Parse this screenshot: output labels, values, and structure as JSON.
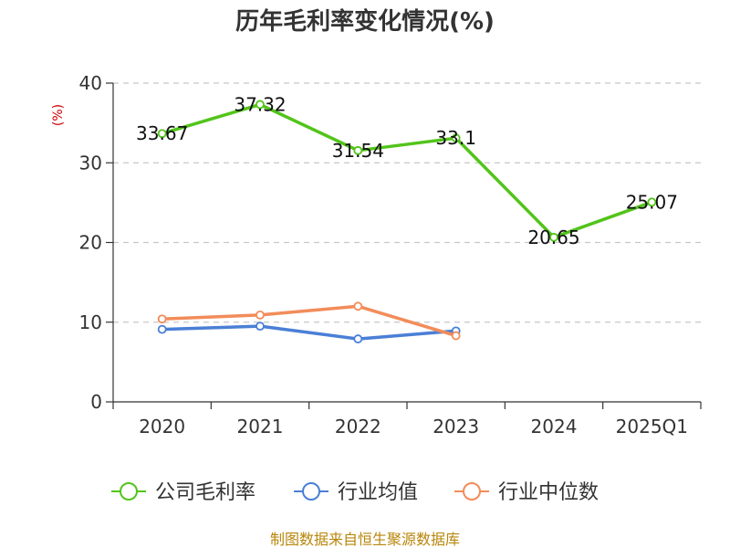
{
  "chart_data": {
    "type": "line",
    "title": "历年毛利率变化情况(%)",
    "ylabel": "(%)",
    "ylim": [
      0,
      40
    ],
    "yticks": [
      0,
      10,
      20,
      30,
      40
    ],
    "categories": [
      "2020",
      "2021",
      "2022",
      "2023",
      "2024",
      "2025Q1"
    ],
    "grid": true,
    "legend_position": "bottom",
    "series": [
      {
        "name": "公司毛利率",
        "color": "#52c41a",
        "values": [
          33.67,
          37.32,
          31.54,
          33.1,
          20.65,
          25.07
        ],
        "labels": [
          "33.67",
          "37.32",
          "31.54",
          "33.1",
          "20.65",
          "25.07"
        ]
      },
      {
        "name": "行业均值",
        "color": "#4a7fd6",
        "values": [
          9.1,
          9.5,
          7.9,
          8.9,
          null,
          null
        ]
      },
      {
        "name": "行业中位数",
        "color": "#f28c5a",
        "values": [
          10.4,
          10.9,
          12.0,
          8.3,
          null,
          null
        ]
      }
    ],
    "source": "制图数据来自恒生聚源数据库"
  }
}
